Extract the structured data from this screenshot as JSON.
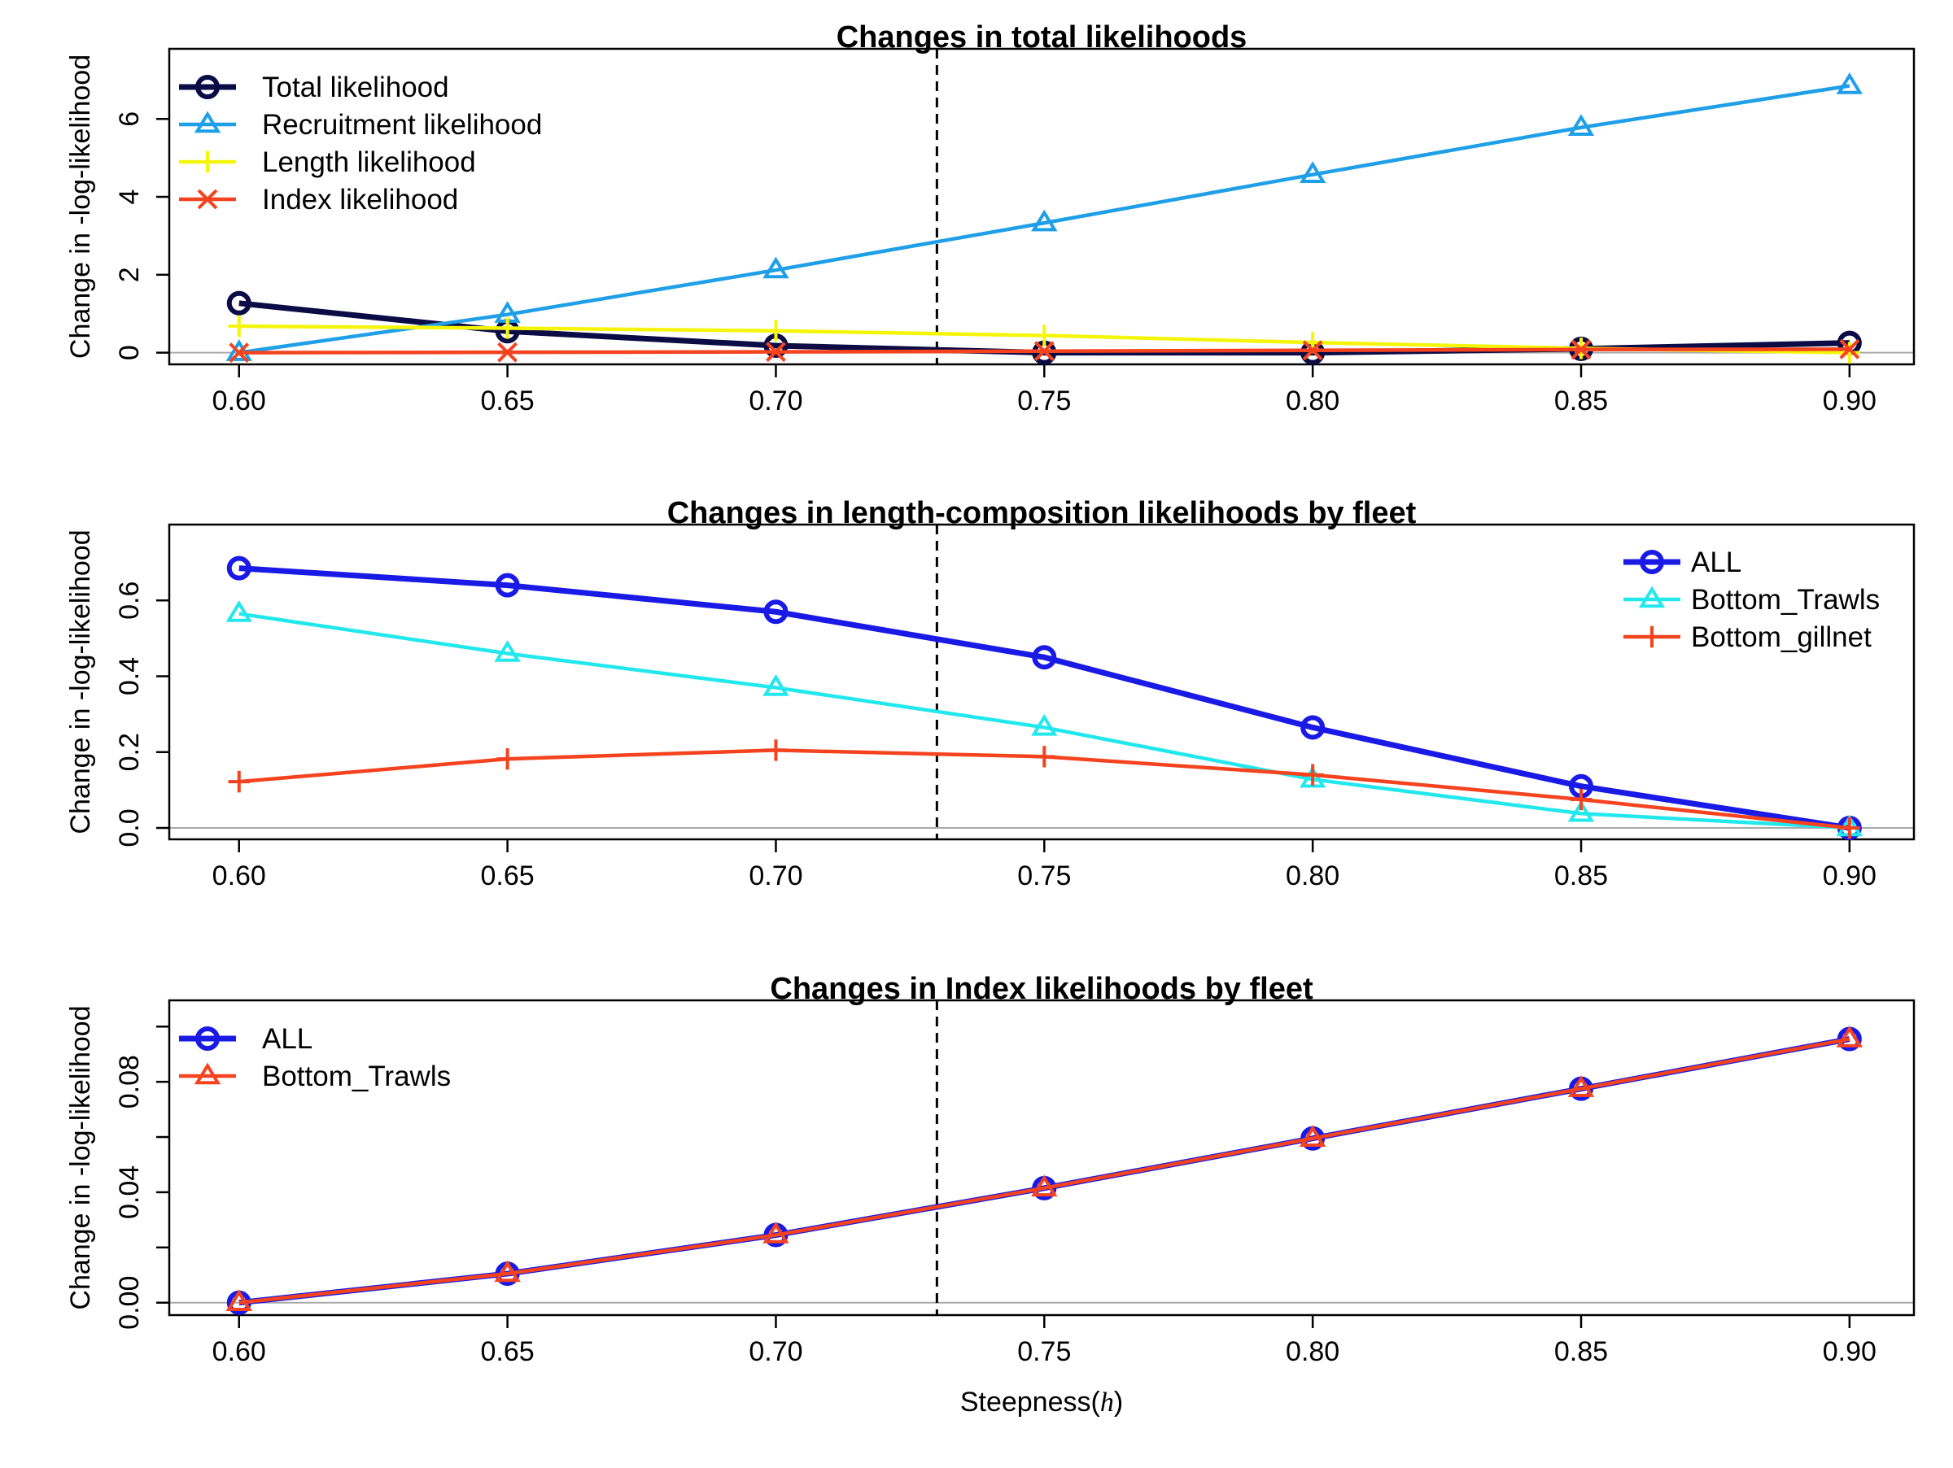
{
  "chart_data": [
    {
      "type": "line",
      "title": "Changes in total likelihoods",
      "ylabel": "Change in -log-likelihood",
      "xlabel": "",
      "x": [
        0.6,
        0.65,
        0.7,
        0.75,
        0.8,
        0.85,
        0.9
      ],
      "x_ticks": [
        "0.60",
        "0.65",
        "0.70",
        "0.75",
        "0.80",
        "0.85",
        "0.90"
      ],
      "xlim": [
        0.587,
        0.912
      ],
      "ylim": [
        -0.3,
        7.8
      ],
      "y_ticks": [
        0,
        2,
        4,
        6
      ],
      "y_tick_labels": [
        "0",
        "2",
        "4",
        "6"
      ],
      "reference_x": 0.73,
      "legend_position": "top-left",
      "series": [
        {
          "name": "Total likelihood",
          "color": "#0b0b45",
          "marker": "circle",
          "values": [
            1.27,
            0.55,
            0.18,
            0.0,
            0.0,
            0.1,
            0.25
          ]
        },
        {
          "name": "Recruitment likelihood",
          "color": "#1f9fe8",
          "marker": "triangle",
          "values": [
            0.0,
            0.98,
            2.12,
            3.33,
            4.57,
            5.78,
            6.85
          ]
        },
        {
          "name": "Length likelihood",
          "color": "#f5f50a",
          "marker": "plus",
          "values": [
            0.68,
            0.63,
            0.56,
            0.44,
            0.26,
            0.11,
            0.0
          ]
        },
        {
          "name": "Index likelihood",
          "color": "#f5431f",
          "marker": "cross",
          "values": [
            0.0,
            0.01,
            0.02,
            0.04,
            0.06,
            0.08,
            0.09
          ]
        }
      ]
    },
    {
      "type": "line",
      "title": "Changes in length-composition likelihoods by fleet",
      "ylabel": "Change in -log-likelihood",
      "xlabel": "",
      "x": [
        0.6,
        0.65,
        0.7,
        0.75,
        0.8,
        0.85,
        0.9
      ],
      "x_ticks": [
        "0.60",
        "0.65",
        "0.70",
        "0.75",
        "0.80",
        "0.85",
        "0.90"
      ],
      "xlim": [
        0.587,
        0.912
      ],
      "ylim": [
        -0.03,
        0.8
      ],
      "y_ticks": [
        0,
        0.2,
        0.4,
        0.6
      ],
      "y_tick_labels": [
        "0.0",
        "0.2",
        "0.4",
        "0.6"
      ],
      "reference_x": 0.73,
      "legend_position": "top-right",
      "series": [
        {
          "name": "ALL",
          "color": "#1a1ae6",
          "marker": "circle",
          "values": [
            0.685,
            0.64,
            0.57,
            0.45,
            0.265,
            0.11,
            0.0
          ]
        },
        {
          "name": "Bottom_Trawls",
          "color": "#22e8ee",
          "marker": "triangle",
          "values": [
            0.565,
            0.46,
            0.37,
            0.265,
            0.128,
            0.038,
            0.0
          ]
        },
        {
          "name": "Bottom_gillnet",
          "color": "#f5431f",
          "marker": "plus",
          "values": [
            0.122,
            0.182,
            0.205,
            0.188,
            0.14,
            0.075,
            0.0
          ]
        }
      ]
    },
    {
      "type": "line",
      "title": "Changes in Index likelihoods by fleet",
      "ylabel": "Change in -log-likelihood",
      "xlabel": "Steepness",
      "xlabel_symbol": "h",
      "x": [
        0.6,
        0.65,
        0.7,
        0.75,
        0.8,
        0.85,
        0.9
      ],
      "x_ticks": [
        "0.60",
        "0.65",
        "0.70",
        "0.75",
        "0.80",
        "0.85",
        "0.90"
      ],
      "xlim": [
        0.587,
        0.912
      ],
      "ylim": [
        -0.0045,
        0.1095
      ],
      "y_ticks": [
        0,
        0.04,
        0.08
      ],
      "y_tick_labels": [
        "0.00",
        "0.04",
        "0.08"
      ],
      "y_minor_ticks": [
        0.02,
        0.06,
        0.1
      ],
      "reference_x": 0.73,
      "legend_position": "top-left",
      "series": [
        {
          "name": "ALL",
          "color": "#1a1ae6",
          "marker": "circle",
          "values": [
            0.0,
            0.0105,
            0.0245,
            0.0415,
            0.0595,
            0.0775,
            0.0955
          ]
        },
        {
          "name": "Bottom_Trawls",
          "color": "#f5431f",
          "marker": "triangle",
          "values": [
            0.0,
            0.0105,
            0.0245,
            0.0415,
            0.0595,
            0.0775,
            0.0955
          ]
        }
      ]
    }
  ]
}
